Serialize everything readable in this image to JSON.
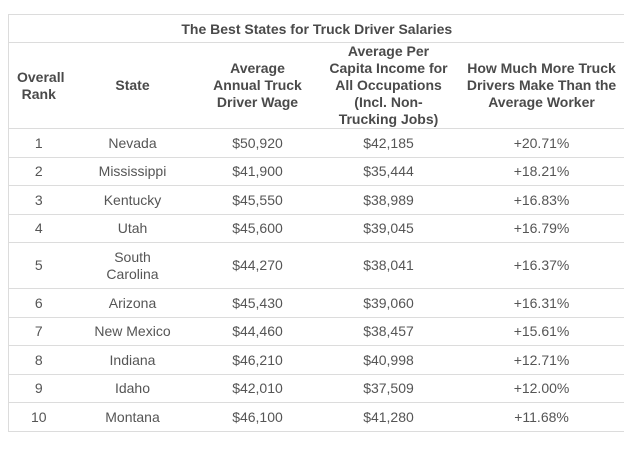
{
  "table": {
    "title": "The Best States for Truck Driver Salaries",
    "headers": [
      "Overall Rank",
      "State",
      "Average Annual Truck Driver Wage",
      "Average Per Capita Income for All Occupations (Incl. Non-Trucking Jobs)",
      "How Much More Truck Drivers Make Than the Average Worker"
    ],
    "rows": [
      {
        "rank": "1",
        "state": "Nevada",
        "wage": "$50,920",
        "income": "$42,185",
        "diff": "+20.71%"
      },
      {
        "rank": "2",
        "state": "Mississippi",
        "wage": "$41,900",
        "income": "$35,444",
        "diff": "+18.21%"
      },
      {
        "rank": "3",
        "state": "Kentucky",
        "wage": "$45,550",
        "income": "$38,989",
        "diff": "+16.83%"
      },
      {
        "rank": "4",
        "state": "Utah",
        "wage": "$45,600",
        "income": "$39,045",
        "diff": "+16.79%"
      },
      {
        "rank": "5",
        "state": "South Carolina",
        "wage": "$44,270",
        "income": "$38,041",
        "diff": "+16.37%"
      },
      {
        "rank": "6",
        "state": "Arizona",
        "wage": "$45,430",
        "income": "$39,060",
        "diff": "+16.31%"
      },
      {
        "rank": "7",
        "state": "New Mexico",
        "wage": "$44,460",
        "income": "$38,457",
        "diff": "+15.61%"
      },
      {
        "rank": "8",
        "state": "Indiana",
        "wage": "$46,210",
        "income": "$40,998",
        "diff": "+12.71%"
      },
      {
        "rank": "9",
        "state": "Idaho",
        "wage": "$42,010",
        "income": "$37,509",
        "diff": "+12.00%"
      },
      {
        "rank": "10",
        "state": "Montana",
        "wage": "$46,100",
        "income": "$41,280",
        "diff": "+11.68%"
      }
    ]
  }
}
